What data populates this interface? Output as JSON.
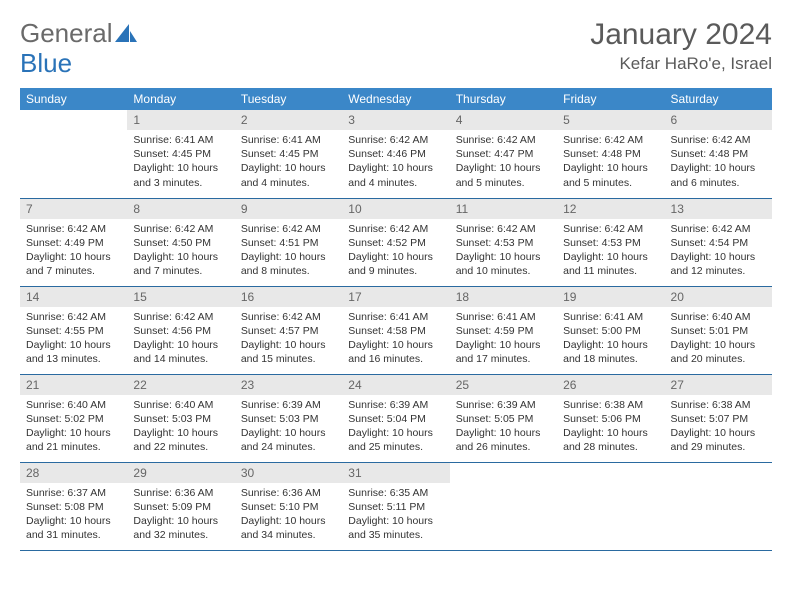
{
  "logo": {
    "text1": "General",
    "text2": "Blue",
    "accent": "#2a73b8",
    "gray": "#6a6a6a"
  },
  "title": "January 2024",
  "location": "Kefar HaRo'e, Israel",
  "header_bg": "#3b87c8",
  "daynum_bg": "#e8e8e8",
  "border_color": "#2a6aa0",
  "day_names": [
    "Sunday",
    "Monday",
    "Tuesday",
    "Wednesday",
    "Thursday",
    "Friday",
    "Saturday"
  ],
  "weeks": [
    [
      {
        "n": "",
        "sr": "",
        "ss": "",
        "dl1": "",
        "dl2": "",
        "empty": true
      },
      {
        "n": "1",
        "sr": "Sunrise: 6:41 AM",
        "ss": "Sunset: 4:45 PM",
        "dl1": "Daylight: 10 hours",
        "dl2": "and 3 minutes."
      },
      {
        "n": "2",
        "sr": "Sunrise: 6:41 AM",
        "ss": "Sunset: 4:45 PM",
        "dl1": "Daylight: 10 hours",
        "dl2": "and 4 minutes."
      },
      {
        "n": "3",
        "sr": "Sunrise: 6:42 AM",
        "ss": "Sunset: 4:46 PM",
        "dl1": "Daylight: 10 hours",
        "dl2": "and 4 minutes."
      },
      {
        "n": "4",
        "sr": "Sunrise: 6:42 AM",
        "ss": "Sunset: 4:47 PM",
        "dl1": "Daylight: 10 hours",
        "dl2": "and 5 minutes."
      },
      {
        "n": "5",
        "sr": "Sunrise: 6:42 AM",
        "ss": "Sunset: 4:48 PM",
        "dl1": "Daylight: 10 hours",
        "dl2": "and 5 minutes."
      },
      {
        "n": "6",
        "sr": "Sunrise: 6:42 AM",
        "ss": "Sunset: 4:48 PM",
        "dl1": "Daylight: 10 hours",
        "dl2": "and 6 minutes."
      }
    ],
    [
      {
        "n": "7",
        "sr": "Sunrise: 6:42 AM",
        "ss": "Sunset: 4:49 PM",
        "dl1": "Daylight: 10 hours",
        "dl2": "and 7 minutes."
      },
      {
        "n": "8",
        "sr": "Sunrise: 6:42 AM",
        "ss": "Sunset: 4:50 PM",
        "dl1": "Daylight: 10 hours",
        "dl2": "and 7 minutes."
      },
      {
        "n": "9",
        "sr": "Sunrise: 6:42 AM",
        "ss": "Sunset: 4:51 PM",
        "dl1": "Daylight: 10 hours",
        "dl2": "and 8 minutes."
      },
      {
        "n": "10",
        "sr": "Sunrise: 6:42 AM",
        "ss": "Sunset: 4:52 PM",
        "dl1": "Daylight: 10 hours",
        "dl2": "and 9 minutes."
      },
      {
        "n": "11",
        "sr": "Sunrise: 6:42 AM",
        "ss": "Sunset: 4:53 PM",
        "dl1": "Daylight: 10 hours",
        "dl2": "and 10 minutes."
      },
      {
        "n": "12",
        "sr": "Sunrise: 6:42 AM",
        "ss": "Sunset: 4:53 PM",
        "dl1": "Daylight: 10 hours",
        "dl2": "and 11 minutes."
      },
      {
        "n": "13",
        "sr": "Sunrise: 6:42 AM",
        "ss": "Sunset: 4:54 PM",
        "dl1": "Daylight: 10 hours",
        "dl2": "and 12 minutes."
      }
    ],
    [
      {
        "n": "14",
        "sr": "Sunrise: 6:42 AM",
        "ss": "Sunset: 4:55 PM",
        "dl1": "Daylight: 10 hours",
        "dl2": "and 13 minutes."
      },
      {
        "n": "15",
        "sr": "Sunrise: 6:42 AM",
        "ss": "Sunset: 4:56 PM",
        "dl1": "Daylight: 10 hours",
        "dl2": "and 14 minutes."
      },
      {
        "n": "16",
        "sr": "Sunrise: 6:42 AM",
        "ss": "Sunset: 4:57 PM",
        "dl1": "Daylight: 10 hours",
        "dl2": "and 15 minutes."
      },
      {
        "n": "17",
        "sr": "Sunrise: 6:41 AM",
        "ss": "Sunset: 4:58 PM",
        "dl1": "Daylight: 10 hours",
        "dl2": "and 16 minutes."
      },
      {
        "n": "18",
        "sr": "Sunrise: 6:41 AM",
        "ss": "Sunset: 4:59 PM",
        "dl1": "Daylight: 10 hours",
        "dl2": "and 17 minutes."
      },
      {
        "n": "19",
        "sr": "Sunrise: 6:41 AM",
        "ss": "Sunset: 5:00 PM",
        "dl1": "Daylight: 10 hours",
        "dl2": "and 18 minutes."
      },
      {
        "n": "20",
        "sr": "Sunrise: 6:40 AM",
        "ss": "Sunset: 5:01 PM",
        "dl1": "Daylight: 10 hours",
        "dl2": "and 20 minutes."
      }
    ],
    [
      {
        "n": "21",
        "sr": "Sunrise: 6:40 AM",
        "ss": "Sunset: 5:02 PM",
        "dl1": "Daylight: 10 hours",
        "dl2": "and 21 minutes."
      },
      {
        "n": "22",
        "sr": "Sunrise: 6:40 AM",
        "ss": "Sunset: 5:03 PM",
        "dl1": "Daylight: 10 hours",
        "dl2": "and 22 minutes."
      },
      {
        "n": "23",
        "sr": "Sunrise: 6:39 AM",
        "ss": "Sunset: 5:03 PM",
        "dl1": "Daylight: 10 hours",
        "dl2": "and 24 minutes."
      },
      {
        "n": "24",
        "sr": "Sunrise: 6:39 AM",
        "ss": "Sunset: 5:04 PM",
        "dl1": "Daylight: 10 hours",
        "dl2": "and 25 minutes."
      },
      {
        "n": "25",
        "sr": "Sunrise: 6:39 AM",
        "ss": "Sunset: 5:05 PM",
        "dl1": "Daylight: 10 hours",
        "dl2": "and 26 minutes."
      },
      {
        "n": "26",
        "sr": "Sunrise: 6:38 AM",
        "ss": "Sunset: 5:06 PM",
        "dl1": "Daylight: 10 hours",
        "dl2": "and 28 minutes."
      },
      {
        "n": "27",
        "sr": "Sunrise: 6:38 AM",
        "ss": "Sunset: 5:07 PM",
        "dl1": "Daylight: 10 hours",
        "dl2": "and 29 minutes."
      }
    ],
    [
      {
        "n": "28",
        "sr": "Sunrise: 6:37 AM",
        "ss": "Sunset: 5:08 PM",
        "dl1": "Daylight: 10 hours",
        "dl2": "and 31 minutes."
      },
      {
        "n": "29",
        "sr": "Sunrise: 6:36 AM",
        "ss": "Sunset: 5:09 PM",
        "dl1": "Daylight: 10 hours",
        "dl2": "and 32 minutes."
      },
      {
        "n": "30",
        "sr": "Sunrise: 6:36 AM",
        "ss": "Sunset: 5:10 PM",
        "dl1": "Daylight: 10 hours",
        "dl2": "and 34 minutes."
      },
      {
        "n": "31",
        "sr": "Sunrise: 6:35 AM",
        "ss": "Sunset: 5:11 PM",
        "dl1": "Daylight: 10 hours",
        "dl2": "and 35 minutes."
      },
      {
        "n": "",
        "sr": "",
        "ss": "",
        "dl1": "",
        "dl2": "",
        "empty": true
      },
      {
        "n": "",
        "sr": "",
        "ss": "",
        "dl1": "",
        "dl2": "",
        "empty": true
      },
      {
        "n": "",
        "sr": "",
        "ss": "",
        "dl1": "",
        "dl2": "",
        "empty": true
      }
    ]
  ]
}
